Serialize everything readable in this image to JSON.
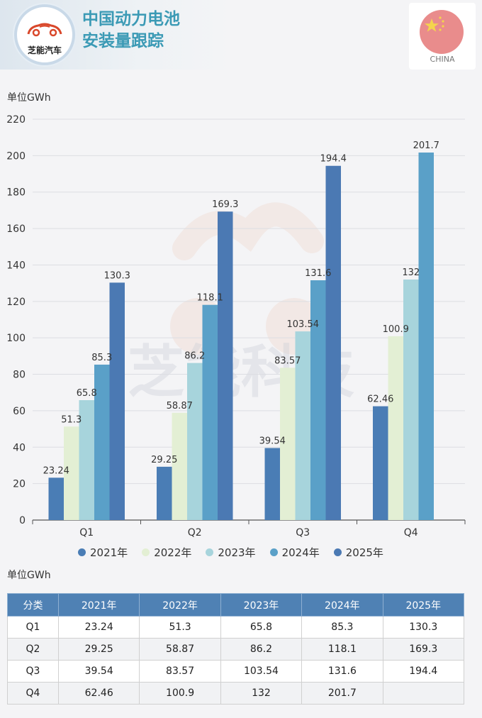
{
  "header": {
    "logo_text": "芝能汽车",
    "title": "中国动力电池\n安装量跟踪",
    "flag_caption": "CHINA",
    "watermark": "芝能科技"
  },
  "unit_label_chart": "单位GWh",
  "unit_label_table": "单位GWh",
  "colors": {
    "2021年": "#4a7db5",
    "2022年": "#e3efd4",
    "2023年": "#a7d4dc",
    "2024年": "#5aa0c8",
    "2025年": "#4b79b3",
    "title": "#3b9ab5",
    "table_header": "#4f81b4"
  },
  "chart_data": {
    "type": "bar",
    "title": "中国动力电池安装量跟踪",
    "ylabel": "单位GWh",
    "xlabel": "",
    "ylim": [
      0,
      220
    ],
    "yticks": [
      0,
      20,
      40,
      60,
      80,
      100,
      120,
      140,
      160,
      180,
      200,
      220
    ],
    "grid": true,
    "legend": "bottom",
    "categories": [
      "Q1",
      "Q2",
      "Q3",
      "Q4"
    ],
    "series": [
      {
        "name": "2021年",
        "values": [
          23.24,
          29.25,
          39.54,
          62.46
        ],
        "labels": [
          "23.24",
          "29.25",
          "39.54",
          "62.46"
        ]
      },
      {
        "name": "2022年",
        "values": [
          51.3,
          58.87,
          83.57,
          100.9
        ],
        "labels": [
          "51.3",
          "58.87",
          "83.57",
          "100.9"
        ]
      },
      {
        "name": "2023年",
        "values": [
          65.8,
          86.2,
          103.54,
          132
        ],
        "labels": [
          "65.8",
          "86.2",
          "103.54",
          "132"
        ]
      },
      {
        "name": "2024年",
        "values": [
          85.3,
          118.1,
          131.6,
          201.7
        ],
        "labels": [
          "85.3",
          "118.1",
          "131.6",
          "201.7"
        ]
      },
      {
        "name": "2025年",
        "values": [
          130.3,
          169.3,
          194.4,
          null
        ],
        "labels": [
          "130.3",
          "169.3",
          "194.4",
          ""
        ]
      }
    ]
  },
  "table": {
    "headers": [
      "分类",
      "2021年",
      "2022年",
      "2023年",
      "2024年",
      "2025年"
    ],
    "rows": [
      [
        "Q1",
        "23.24",
        "51.3",
        "65.8",
        "85.3",
        "130.3"
      ],
      [
        "Q2",
        "29.25",
        "58.87",
        "86.2",
        "118.1",
        "169.3"
      ],
      [
        "Q3",
        "39.54",
        "83.57",
        "103.54",
        "131.6",
        "194.4"
      ],
      [
        "Q4",
        "62.46",
        "100.9",
        "132",
        "201.7",
        ""
      ]
    ]
  }
}
